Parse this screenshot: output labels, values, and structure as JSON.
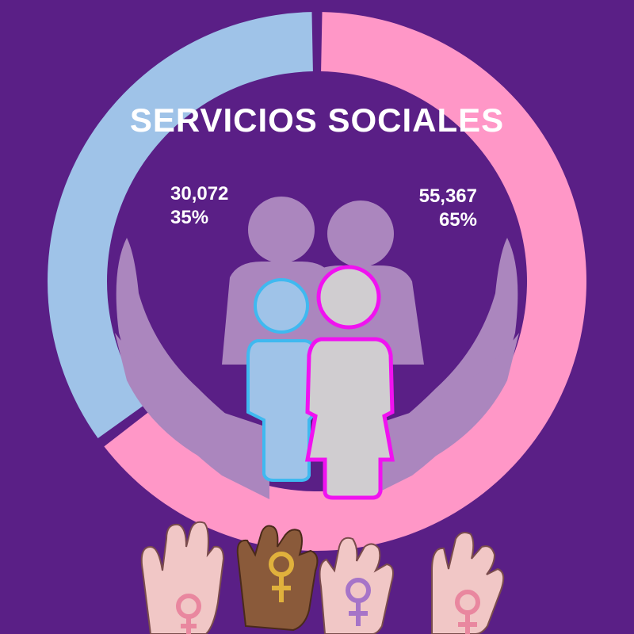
{
  "chart_data": {
    "type": "pie",
    "title": "SERVICIOS SOCIALES",
    "slices": [
      {
        "value": 30072,
        "percent": 35,
        "value_label": "30,072",
        "percent_label": "35%",
        "color": "#9fc3e8"
      },
      {
        "value": 55367,
        "percent": 65,
        "value_label": "55,367",
        "percent_label": "65%",
        "color": "#ff97c7"
      }
    ],
    "style": "donut"
  },
  "colors": {
    "background": "#5a1f86",
    "hands": "#ab86be",
    "parents": "#ab86be",
    "boy_fill": "#9fc3e8",
    "boy_outline": "#3fb9f0",
    "girl_fill": "#d0cdd0",
    "girl_outline": "#f012f0",
    "palm": "#f1c7c6",
    "palm_dark": "#8a5a3a",
    "symbol_pink": "#e9879f",
    "symbol_purple": "#a674c8",
    "symbol_gold": "#e0b13c"
  },
  "icons": [
    "caring-hands-icon",
    "family-icon",
    "raised-hands-female-symbol-icon"
  ]
}
